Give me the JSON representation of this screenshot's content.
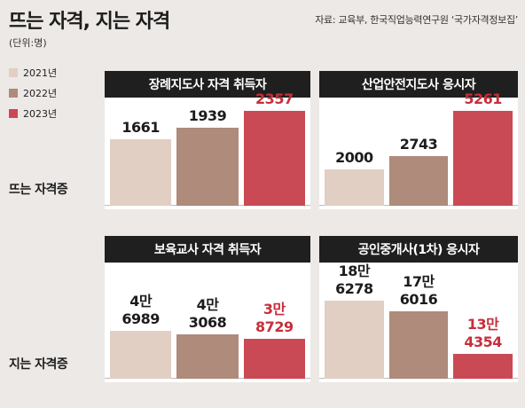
{
  "title": "뜨는 자격, 지는 자격",
  "source": "자료: 교육부, 한국직업능력연구원 ‘국가자격정보집’",
  "unit": "(단위:명)",
  "legend": [
    {
      "label": "2021년",
      "color": "#e2cfc3"
    },
    {
      "label": "2022년",
      "color": "#ae8b7a"
    },
    {
      "label": "2023년",
      "color": "#c94a54"
    }
  ],
  "row_labels": {
    "top": "뜨는 자격증",
    "bottom": "지는 자격증"
  },
  "chart_data": [
    {
      "type": "bar",
      "title": "장례지도사 자격 취득자",
      "categories": [
        "2021년",
        "2022년",
        "2023년"
      ],
      "values": [
        1661,
        1939,
        2357
      ],
      "value_labels": [
        "1661",
        "1939",
        "2357"
      ],
      "ylim": [
        0,
        2600
      ]
    },
    {
      "type": "bar",
      "title": "산업안전지도사 응시자",
      "categories": [
        "2021년",
        "2022년",
        "2023년"
      ],
      "values": [
        2000,
        2743,
        5261
      ],
      "value_labels": [
        "2000",
        "2743",
        "5261"
      ],
      "ylim": [
        0,
        5800
      ]
    },
    {
      "type": "bar",
      "title": "보육교사 자격 취득자",
      "categories": [
        "2021년",
        "2022년",
        "2023년"
      ],
      "values": [
        46989,
        43068,
        38729
      ],
      "value_labels": [
        "4만\n6989",
        "4만\n3068",
        "3만\n8729"
      ],
      "ylim": [
        0,
        110000
      ]
    },
    {
      "type": "bar",
      "title": "공인중개사(1차) 응시자",
      "categories": [
        "2021년",
        "2022년",
        "2023년"
      ],
      "values": [
        186278,
        176016,
        134354
      ],
      "value_labels": [
        "18만\n6278",
        "17만\n6016",
        "13만\n4354"
      ],
      "ylim": [
        110000,
        220000
      ]
    }
  ]
}
